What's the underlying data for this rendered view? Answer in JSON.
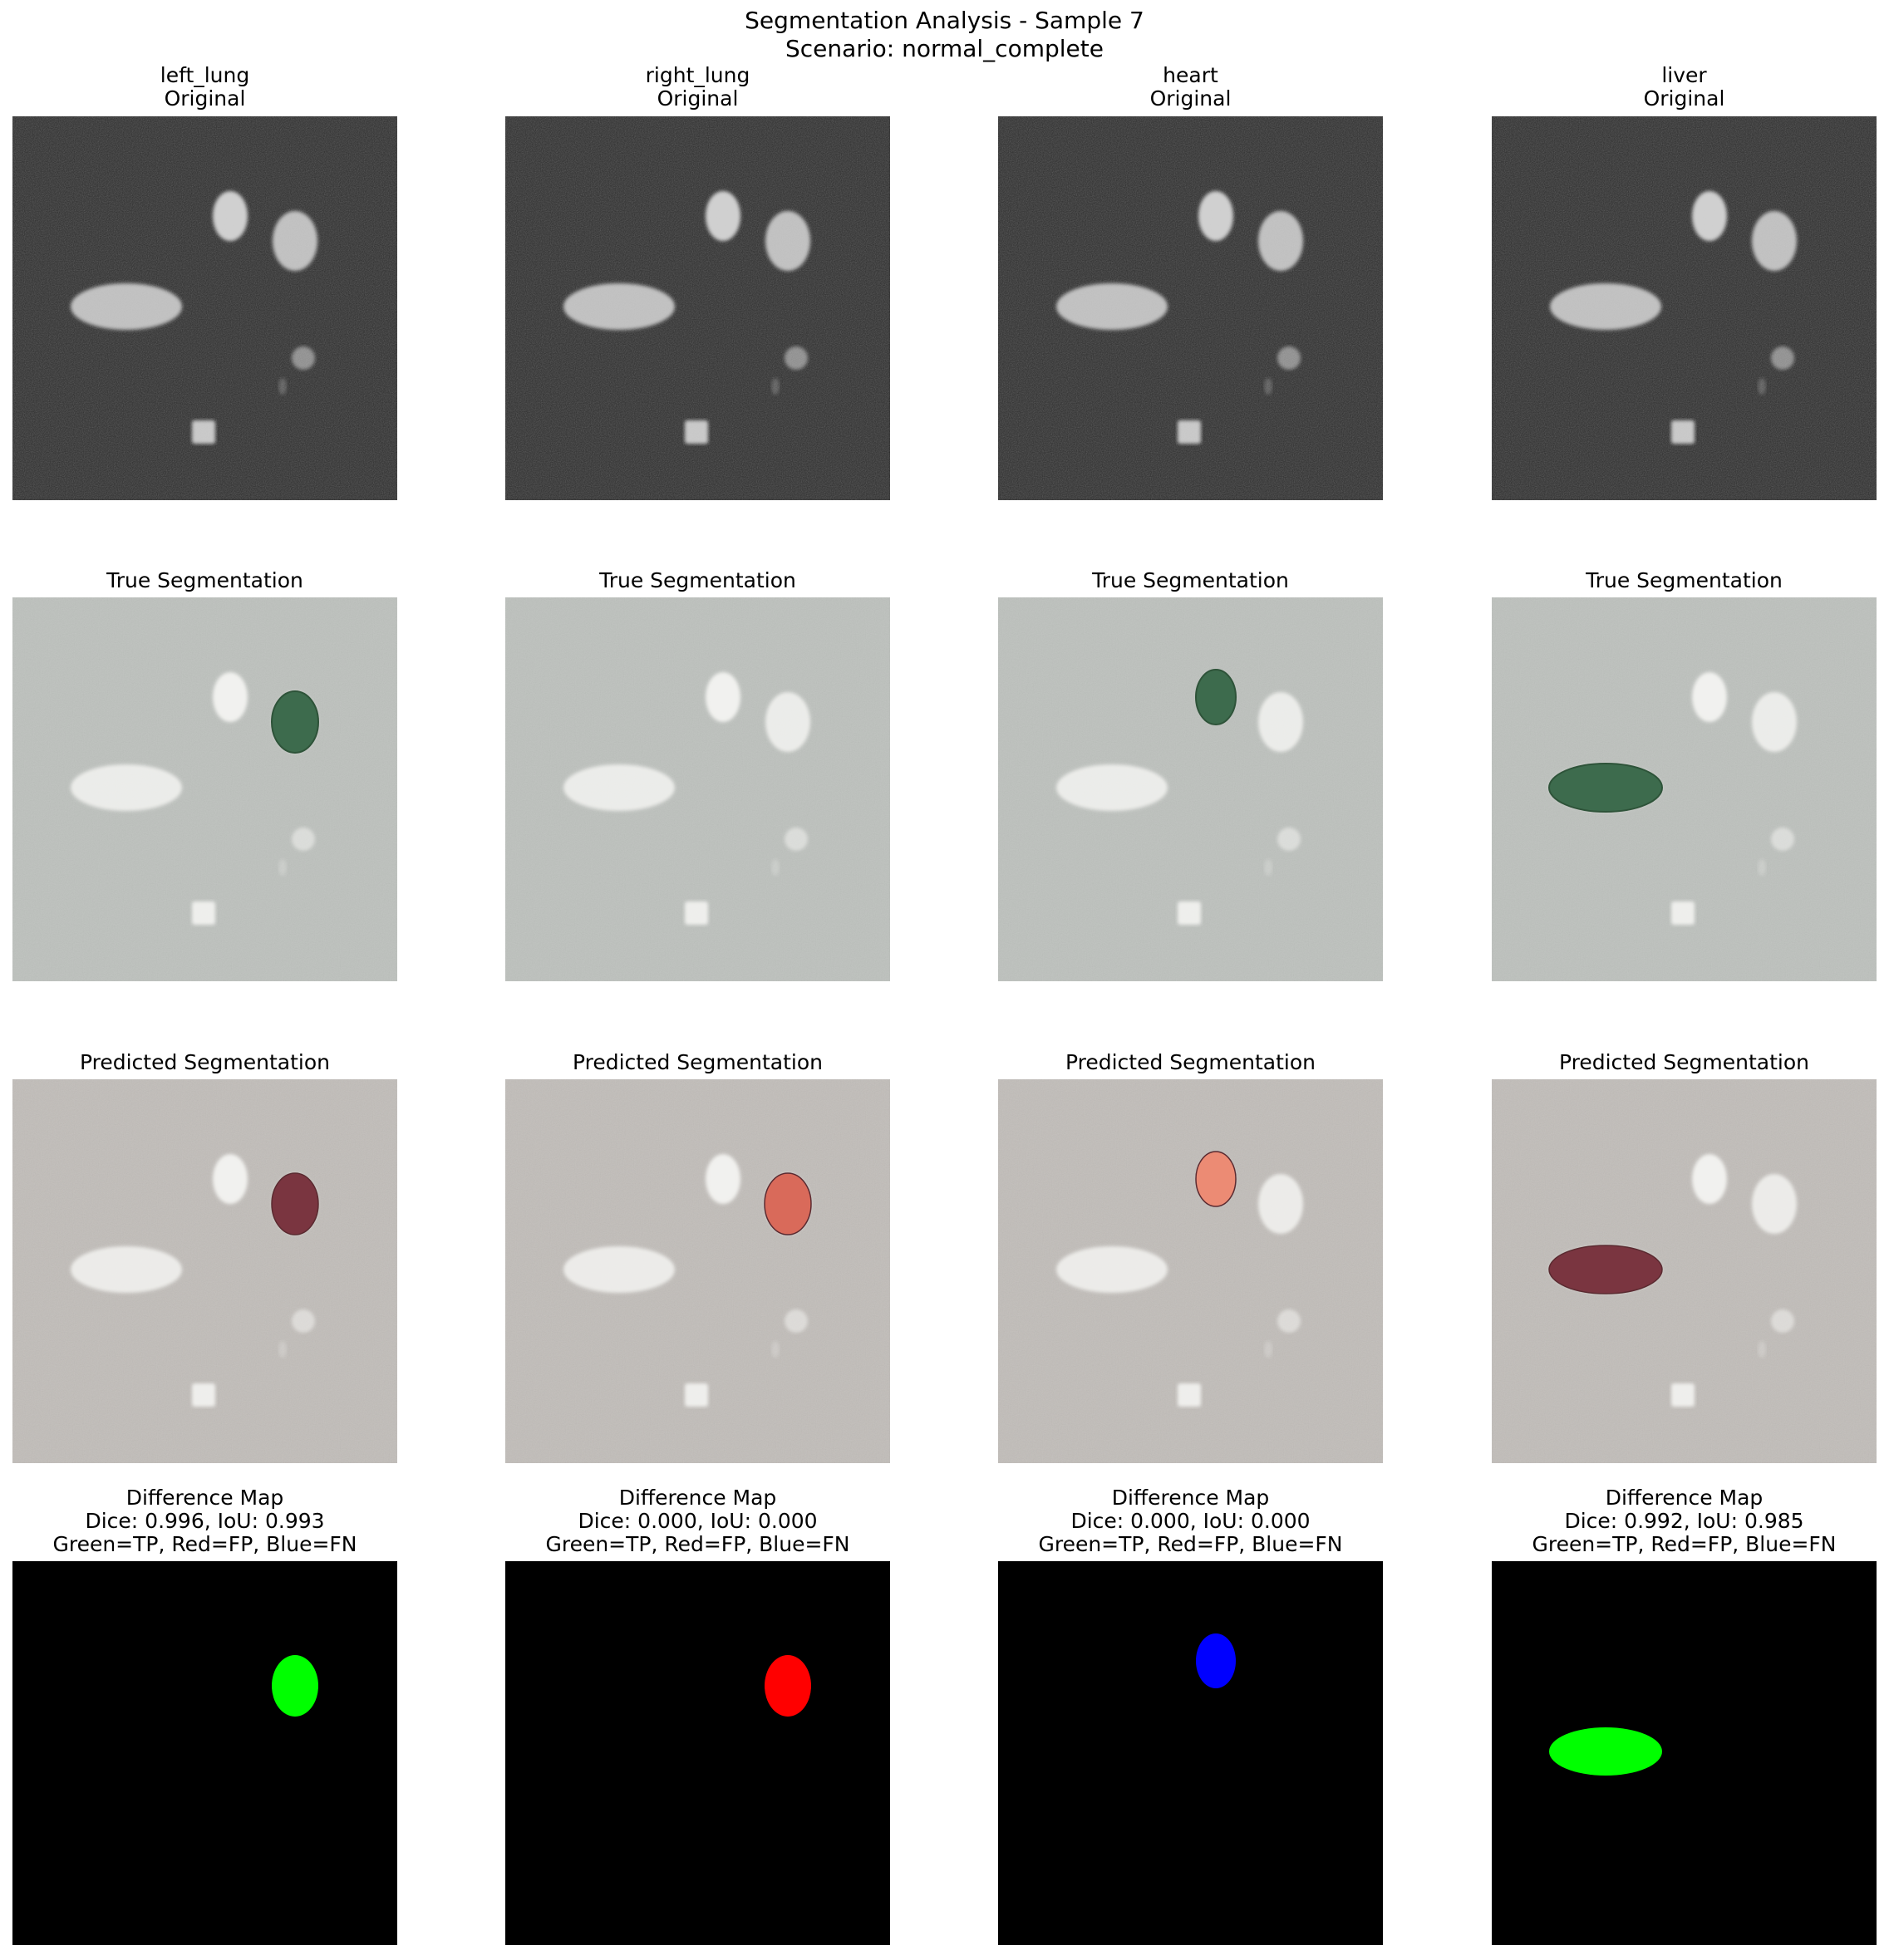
{
  "figure": {
    "title_line1": "Segmentation Analysis - Sample 7",
    "title_line2": "Scenario: normal_complete"
  },
  "columns": [
    {
      "organ": "left_lung",
      "original_label": "Original",
      "true_label": "True Segmentation",
      "pred_label": "Predicted Segmentation",
      "diff_title": "Difference Map",
      "diff_metrics": "Dice: 0.996, IoU: 0.993",
      "diff_legend": "Green=TP, Red=FP, Blue=FN",
      "true_overlay_blob": "blob-right",
      "pred_overlay_blob": "blob-right",
      "pred_overlay_color": "#7a3540",
      "diff_blob": "blob-right",
      "diff_color": "#00ff00"
    },
    {
      "organ": "right_lung",
      "original_label": "Original",
      "true_label": "True Segmentation",
      "pred_label": "Predicted Segmentation",
      "diff_title": "Difference Map",
      "diff_metrics": "Dice: 0.000, IoU: 0.000",
      "diff_legend": "Green=TP, Red=FP, Blue=FN",
      "true_overlay_blob": "",
      "pred_overlay_blob": "blob-right",
      "pred_overlay_color": "#d96a5a",
      "diff_blob": "blob-right",
      "diff_color": "#ff0000"
    },
    {
      "organ": "heart",
      "original_label": "Original",
      "true_label": "True Segmentation",
      "pred_label": "Predicted Segmentation",
      "diff_title": "Difference Map",
      "diff_metrics": "Dice: 0.000, IoU: 0.000",
      "diff_legend": "Green=TP, Red=FP, Blue=FN",
      "true_overlay_blob": "blob-top",
      "pred_overlay_blob": "blob-top",
      "pred_overlay_color": "#ec8b74",
      "diff_blob": "blob-top",
      "diff_color": "#0000ff"
    },
    {
      "organ": "liver",
      "original_label": "Original",
      "true_label": "True Segmentation",
      "pred_label": "Predicted Segmentation",
      "diff_title": "Difference Map",
      "diff_metrics": "Dice: 0.992, IoU: 0.985",
      "diff_legend": "Green=TP, Red=FP, Blue=FN",
      "true_overlay_blob": "blob-big",
      "pred_overlay_blob": "blob-big",
      "pred_overlay_color": "#7a3540",
      "diff_blob": "blob-big",
      "diff_color": "#00ff00"
    }
  ],
  "colors": {
    "original_background": "#2a2a2a",
    "true_background": "#bdc1bd",
    "pred_background": "#c1bdb9",
    "true_overlay": "#3d6b4d",
    "diff_background": "#000000"
  }
}
